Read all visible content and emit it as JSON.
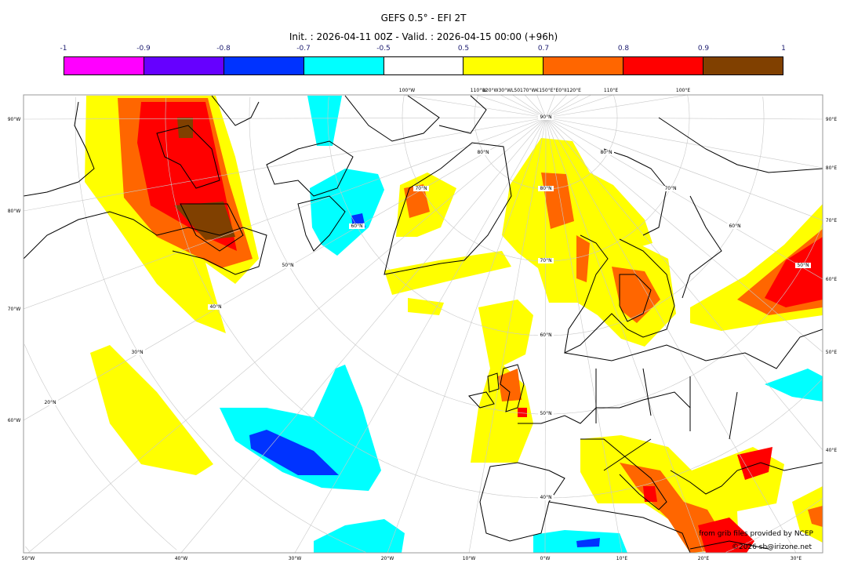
{
  "header": {
    "title": "GEFS 0.5° - EFI 2T",
    "subtitle": "Init. : 2026-04-11 00Z - Valid. : 2026-04-15 00:00 (+96h)"
  },
  "colorbar": {
    "ticks": [
      "-1",
      "-0.9",
      "-0.8",
      "-0.7",
      "-0.5",
      "0.5",
      "0.7",
      "0.8",
      "0.9",
      "1"
    ],
    "colors": [
      "#ff00ff",
      "#6600ff",
      "#0033ff",
      "#00ffff",
      "#ffffff",
      "#ffff00",
      "#ff6600",
      "#ff0000",
      "#804000"
    ]
  },
  "map": {
    "left_labels": [
      "90°W",
      "80°W",
      "70°W",
      "60°W"
    ],
    "right_labels": [
      "90°E",
      "80°E",
      "70°E",
      "60°E",
      "50°E",
      "40°E"
    ],
    "bottom_labels": [
      "50°W",
      "40°W",
      "30°W",
      "20°W",
      "10°W",
      "0°W",
      "10°E",
      "20°E",
      "30°E"
    ],
    "top_labels": [
      "100°W",
      "110°W",
      "120°W30°WL50170°W€150°E°E0°II120°E",
      "110°E",
      "100°E"
    ],
    "lat_labels": [
      "90°N",
      "80°N",
      "70°N",
      "60°N",
      "50°N",
      "40°N",
      "30°N",
      "20°N",
      "80°N",
      "70°N",
      "60°N",
      "50°N",
      "40°N",
      "80°N",
      "70°N",
      "60°N",
      "50°N"
    ],
    "coast_color": "#000000",
    "grid_color": "#c8c8c8"
  },
  "credits": {
    "source": "from grib files provided by NCEP",
    "copyright": "©2026 sb@irizone.net"
  }
}
